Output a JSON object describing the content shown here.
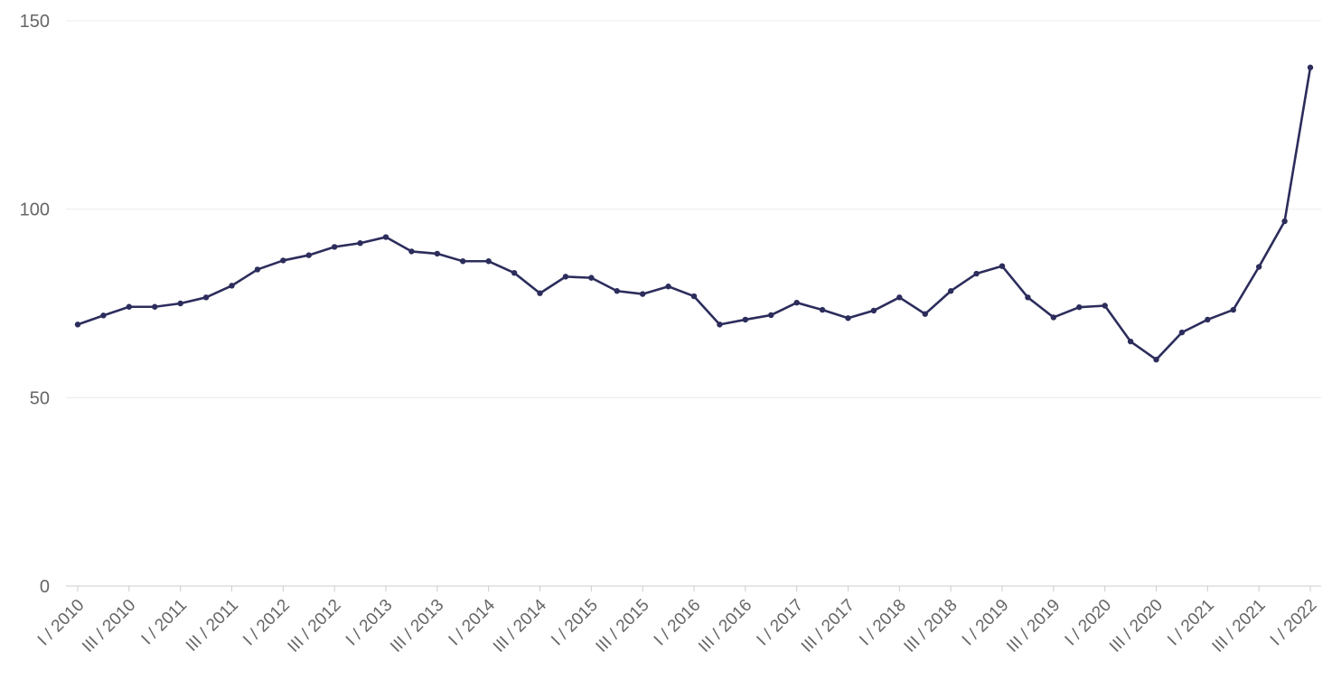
{
  "chart_data": {
    "type": "line",
    "title": "",
    "xlabel": "",
    "ylabel": "",
    "ylim": [
      0,
      150
    ],
    "y_ticks": [
      0,
      50,
      100,
      150
    ],
    "grid": true,
    "legend": "none",
    "x": [
      "I / 2010",
      "II / 2010",
      "III / 2010",
      "IV / 2010",
      "I / 2011",
      "II / 2011",
      "III / 2011",
      "IV / 2011",
      "I / 2012",
      "II / 2012",
      "III / 2012",
      "IV / 2012",
      "I / 2013",
      "II / 2013",
      "III / 2013",
      "IV / 2013",
      "I / 2014",
      "II / 2014",
      "III / 2014",
      "IV / 2014",
      "I / 2015",
      "II / 2015",
      "III / 2015",
      "IV / 2015",
      "I / 2016",
      "II / 2016",
      "III / 2016",
      "IV / 2016",
      "I / 2017",
      "II / 2017",
      "III / 2017",
      "IV / 2017",
      "I / 2018",
      "II / 2018",
      "III / 2018",
      "IV / 2018",
      "I / 2019",
      "II / 2019",
      "III / 2019",
      "IV / 2019",
      "I / 2020",
      "II / 2020",
      "III / 2020",
      "IV / 2020",
      "I / 2021",
      "II / 2021",
      "III / 2021",
      "IV / 2021",
      "I / 2022"
    ],
    "x_tick_labels": [
      "I / 2010",
      "III / 2010",
      "I / 2011",
      "III / 2011",
      "I / 2012",
      "III / 2012",
      "I / 2013",
      "III / 2013",
      "I / 2014",
      "III / 2014",
      "I / 2015",
      "III / 2015",
      "I / 2016",
      "III / 2016",
      "I / 2017",
      "III / 2017",
      "I / 2018",
      "III / 2018",
      "I / 2019",
      "III / 2019",
      "I / 2020",
      "III / 2020",
      "I / 2021",
      "III / 2021",
      "I / 2022"
    ],
    "series": [
      {
        "color": "#2c2d5c",
        "values": [
          69.4,
          71.8,
          74.1,
          74.1,
          75.0,
          76.6,
          79.7,
          84.0,
          86.4,
          87.8,
          90.0,
          91.0,
          92.6,
          88.8,
          88.2,
          86.2,
          86.2,
          83.1,
          77.7,
          82.1,
          81.8,
          78.3,
          77.5,
          79.5,
          76.9,
          69.4,
          70.7,
          71.9,
          75.2,
          73.3,
          71.1,
          73.1,
          76.6,
          72.2,
          78.3,
          82.9,
          84.9,
          76.6,
          71.3,
          74.0,
          74.4,
          64.9,
          60.1,
          67.3,
          70.7,
          73.3,
          84.7,
          96.8,
          137.6
        ]
      }
    ]
  }
}
